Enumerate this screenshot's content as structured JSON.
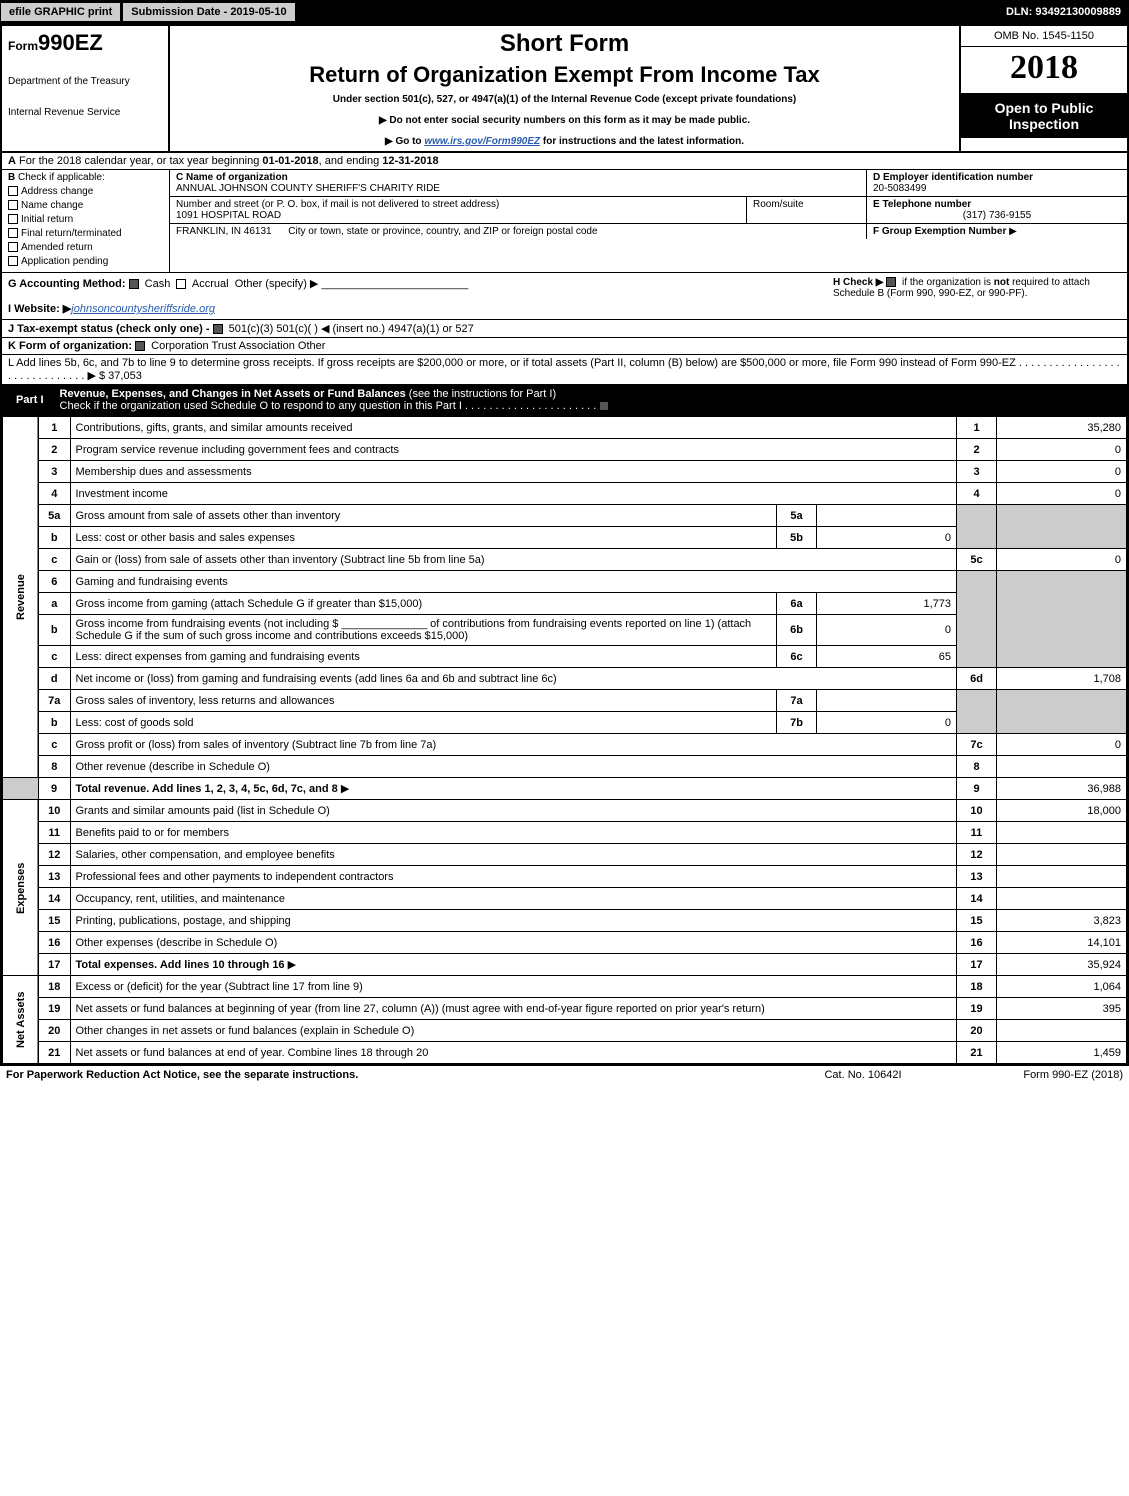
{
  "topbar": {
    "efile": "efile GRAPHIC print",
    "submission": "Submission Date - 2019-05-10",
    "dln": "DLN: 93492130009889"
  },
  "header": {
    "form_prefix": "Form",
    "form_number": "990EZ",
    "dept1": "Department of the Treasury",
    "dept2": "Internal Revenue Service",
    "short_form": "Short Form",
    "title": "Return of Organization Exempt From Income Tax",
    "subtitle": "Under section 501(c), 527, or 4947(a)(1) of the Internal Revenue Code (except private foundations)",
    "noenter": "▶ Do not enter social security numbers on this form as it may be made public.",
    "goto_pre": "▶ Go to ",
    "goto_link": "www.irs.gov/Form990EZ",
    "goto_post": " for instructions and the latest information.",
    "omb": "OMB No. 1545-1150",
    "year": "2018",
    "otp1": "Open to Public",
    "otp2": "Inspection"
  },
  "A": {
    "text_pre": "For the 2018 calendar year, or tax year beginning ",
    "begin": "01-01-2018",
    "mid": ", and ending ",
    "end": "12-31-2018"
  },
  "B": {
    "label": "Check if applicable:",
    "items": [
      "Address change",
      "Name change",
      "Initial return",
      "Final return/terminated",
      "Amended return",
      "Application pending"
    ]
  },
  "C": {
    "name_label": "C Name of organization",
    "name": "ANNUAL JOHNSON COUNTY SHERIFF'S CHARITY RIDE",
    "street_label": "Number and street (or P. O. box, if mail is not delivered to street address)",
    "street": "1091 HOSPITAL ROAD",
    "room_label": "Room/suite",
    "city_label": "City or town, state or province, country, and ZIP or foreign postal code",
    "city": "FRANKLIN, IN  46131"
  },
  "D": {
    "label": "D Employer identification number",
    "value": "20-5083499"
  },
  "E": {
    "label": "E Telephone number",
    "value": "(317) 736-9155"
  },
  "F": {
    "label": "F Group Exemption Number",
    "arrow": "▶"
  },
  "G": {
    "label": "G Accounting Method:",
    "cash": "Cash",
    "accrual": "Accrual",
    "other": "Other (specify) ▶"
  },
  "H": {
    "text1": "H  Check ▶",
    "text2": "if the organization is ",
    "not": "not",
    "text3": " required to attach Schedule B (Form 990, 990-EZ, or 990-PF)."
  },
  "I": {
    "label": "I Website: ▶",
    "value": "johnsoncountysheriffsride.org"
  },
  "J": {
    "text": "J Tax-exempt status (check only one) -",
    "opts": "501(c)(3)    501(c)(  ) ◀ (insert no.)    4947(a)(1) or    527"
  },
  "K": {
    "text": "K Form of organization:",
    "opts": "Corporation    Trust    Association    Other"
  },
  "L": {
    "text": "L Add lines 5b, 6c, and 7b to line 9 to determine gross receipts. If gross receipts are $200,000 or more, or if total assets (Part II, column (B) below) are $500,000 or more, file Form 990 instead of Form 990-EZ",
    "amount_pre": "▶ $ ",
    "amount": "37,053"
  },
  "part1": {
    "label": "Part I",
    "title": "Revenue, Expenses, and Changes in Net Assets or Fund Balances",
    "title_post": " (see the instructions for Part I)",
    "check": "Check if the organization used Schedule O to respond to any question in this Part I"
  },
  "side": {
    "revenue": "Revenue",
    "expenses": "Expenses",
    "netassets": "Net Assets"
  },
  "lines": {
    "1": {
      "n": "1",
      "d": "Contributions, gifts, grants, and similar amounts received",
      "rn": "1",
      "rv": "35,280"
    },
    "2": {
      "n": "2",
      "d": "Program service revenue including government fees and contracts",
      "rn": "2",
      "rv": "0"
    },
    "3": {
      "n": "3",
      "d": "Membership dues and assessments",
      "rn": "3",
      "rv": "0"
    },
    "4": {
      "n": "4",
      "d": "Investment income",
      "rn": "4",
      "rv": "0"
    },
    "5a": {
      "n": "5a",
      "d": "Gross amount from sale of assets other than inventory",
      "sn": "5a",
      "sv": ""
    },
    "5b": {
      "n": "b",
      "d": "Less: cost or other basis and sales expenses",
      "sn": "5b",
      "sv": "0"
    },
    "5c": {
      "n": "c",
      "d": "Gain or (loss) from sale of assets other than inventory (Subtract line 5b from line 5a)",
      "rn": "5c",
      "rv": "0"
    },
    "6": {
      "n": "6",
      "d": "Gaming and fundraising events"
    },
    "6a": {
      "n": "a",
      "d": "Gross income from gaming (attach Schedule G if greater than $15,000)",
      "sn": "6a",
      "sv": "1,773"
    },
    "6b": {
      "n": "b",
      "d": "Gross income from fundraising events (not including $ ______________ of contributions from fundraising events reported on line 1) (attach Schedule G if the sum of such gross income and contributions exceeds $15,000)",
      "sn": "6b",
      "sv": "0"
    },
    "6c": {
      "n": "c",
      "d": "Less: direct expenses from gaming and fundraising events",
      "sn": "6c",
      "sv": "65"
    },
    "6d": {
      "n": "d",
      "d": "Net income or (loss) from gaming and fundraising events (add lines 6a and 6b and subtract line 6c)",
      "rn": "6d",
      "rv": "1,708"
    },
    "7a": {
      "n": "7a",
      "d": "Gross sales of inventory, less returns and allowances",
      "sn": "7a",
      "sv": ""
    },
    "7b": {
      "n": "b",
      "d": "Less: cost of goods sold",
      "sn": "7b",
      "sv": "0"
    },
    "7c": {
      "n": "c",
      "d": "Gross profit or (loss) from sales of inventory (Subtract line 7b from line 7a)",
      "rn": "7c",
      "rv": "0"
    },
    "8": {
      "n": "8",
      "d": "Other revenue (describe in Schedule O)",
      "rn": "8",
      "rv": ""
    },
    "9": {
      "n": "9",
      "d": "Total revenue. Add lines 1, 2, 3, 4, 5c, 6d, 7c, and 8",
      "rn": "9",
      "rv": "36,988"
    },
    "10": {
      "n": "10",
      "d": "Grants and similar amounts paid (list in Schedule O)",
      "rn": "10",
      "rv": "18,000"
    },
    "11": {
      "n": "11",
      "d": "Benefits paid to or for members",
      "rn": "11",
      "rv": ""
    },
    "12": {
      "n": "12",
      "d": "Salaries, other compensation, and employee benefits",
      "rn": "12",
      "rv": ""
    },
    "13": {
      "n": "13",
      "d": "Professional fees and other payments to independent contractors",
      "rn": "13",
      "rv": ""
    },
    "14": {
      "n": "14",
      "d": "Occupancy, rent, utilities, and maintenance",
      "rn": "14",
      "rv": ""
    },
    "15": {
      "n": "15",
      "d": "Printing, publications, postage, and shipping",
      "rn": "15",
      "rv": "3,823"
    },
    "16": {
      "n": "16",
      "d": "Other expenses (describe in Schedule O)",
      "rn": "16",
      "rv": "14,101"
    },
    "17": {
      "n": "17",
      "d": "Total expenses. Add lines 10 through 16",
      "rn": "17",
      "rv": "35,924"
    },
    "18": {
      "n": "18",
      "d": "Excess or (deficit) for the year (Subtract line 17 from line 9)",
      "rn": "18",
      "rv": "1,064"
    },
    "19": {
      "n": "19",
      "d": "Net assets or fund balances at beginning of year (from line 27, column (A)) (must agree with end-of-year figure reported on prior year's return)",
      "rn": "19",
      "rv": "395"
    },
    "20": {
      "n": "20",
      "d": "Other changes in net assets or fund balances (explain in Schedule O)",
      "rn": "20",
      "rv": ""
    },
    "21": {
      "n": "21",
      "d": "Net assets or fund balances at end of year. Combine lines 18 through 20",
      "rn": "21",
      "rv": "1,459"
    }
  },
  "footer": {
    "left": "For Paperwork Reduction Act Notice, see the separate instructions.",
    "mid": "Cat. No. 10642I",
    "right": "Form 990-EZ (2018)"
  }
}
